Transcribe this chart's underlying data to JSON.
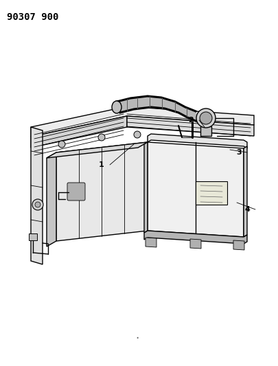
{
  "title_code": "90307 900",
  "bg_color": "#ffffff",
  "line_color": "#000000",
  "fig_width": 4.05,
  "fig_height": 5.33,
  "dpi": 100
}
